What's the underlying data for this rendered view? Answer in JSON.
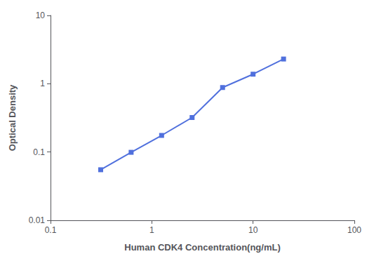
{
  "chart_data": {
    "type": "line",
    "x": [
      0.313,
      0.625,
      1.25,
      2.5,
      5.0,
      10.0,
      20.0
    ],
    "values": [
      0.055,
      0.099,
      0.175,
      0.32,
      0.88,
      1.38,
      2.3
    ],
    "xlabel": "Human CDK4 Concentration(ng/mL)",
    "ylabel": "Optical Density",
    "xlim": [
      0.1,
      100
    ],
    "ylim": [
      0.01,
      10
    ],
    "xticks": [
      0.1,
      1,
      10,
      100
    ],
    "yticks": [
      0.01,
      0.1,
      1,
      10
    ],
    "log": true,
    "grid": false,
    "marker": "square",
    "line_style": "solid"
  }
}
